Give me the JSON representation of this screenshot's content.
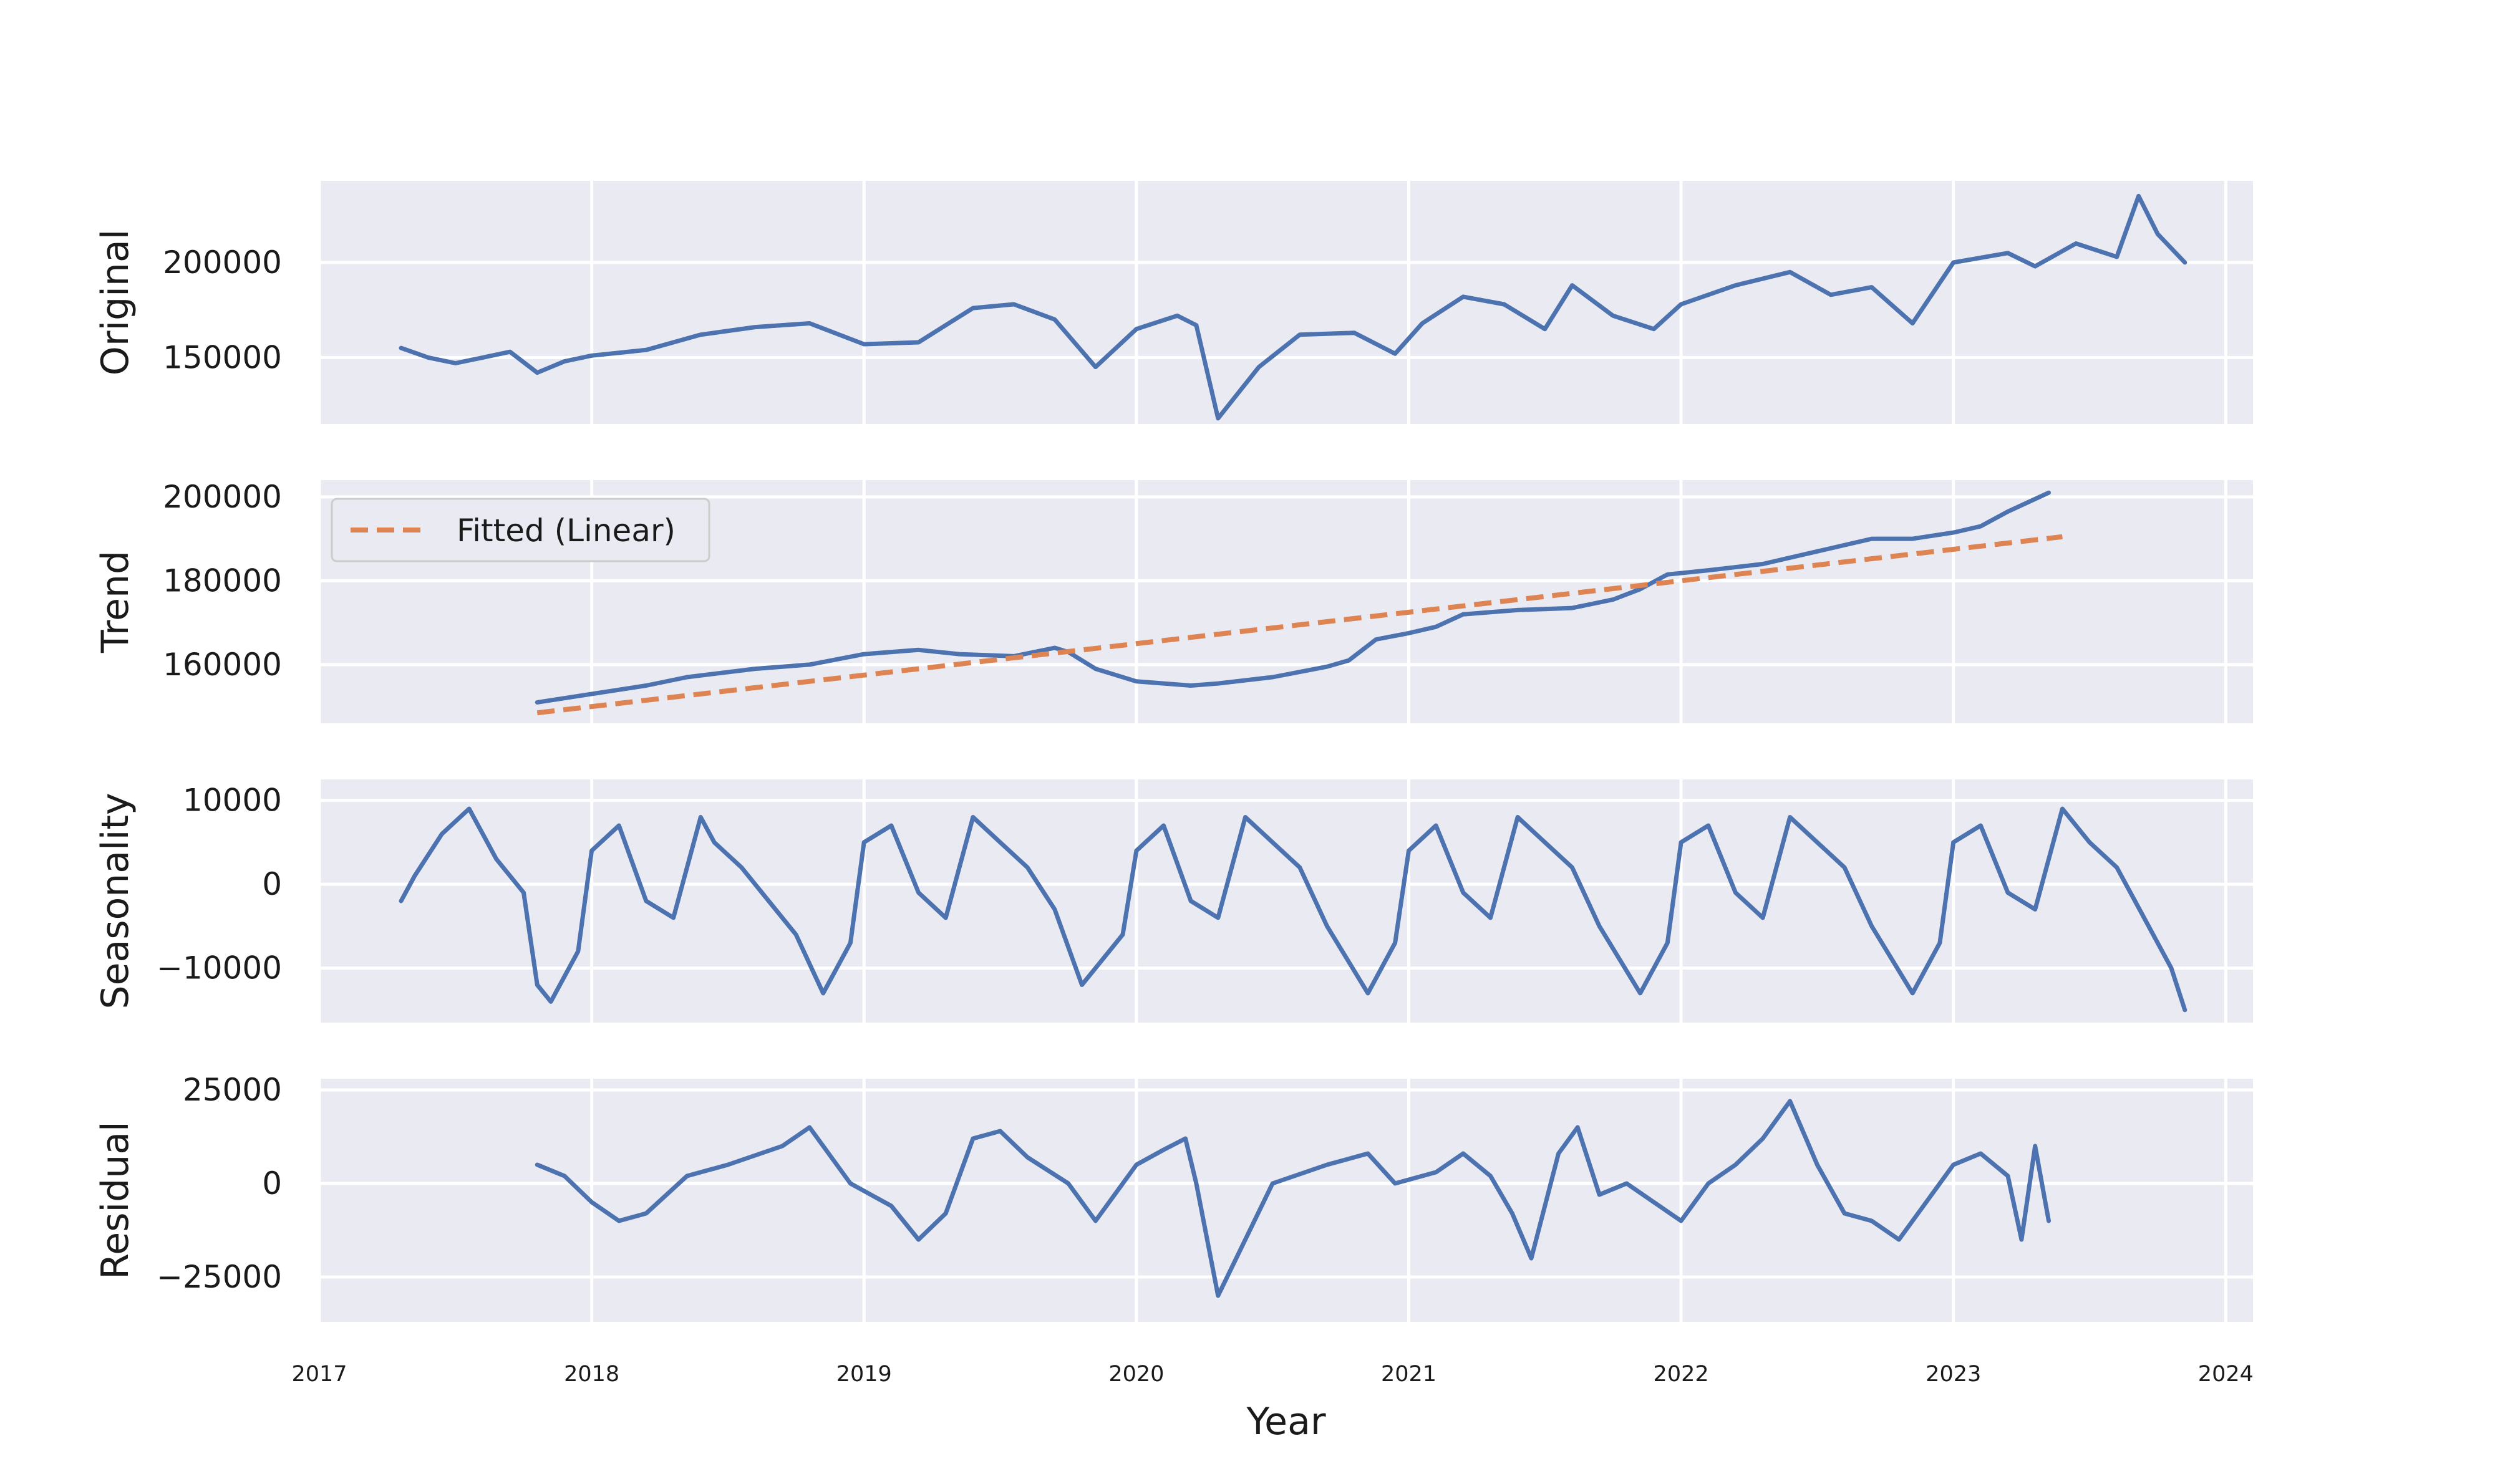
{
  "chart_data": {
    "type": "line",
    "xlabel": "Year",
    "xlim": [
      2017.0,
      2024.1
    ],
    "x_ticks": [
      "2017",
      "2018",
      "2019",
      "2020",
      "2021",
      "2022",
      "2023",
      "2024"
    ],
    "colors": {
      "observed": "#4c72b0",
      "fitted": "#dd8452"
    },
    "panels": [
      {
        "key": "original",
        "ylabel": "Original",
        "ylim": [
          115000,
          243000
        ],
        "y_ticks": [
          150000,
          200000
        ],
        "y_tick_labels": [
          "150000",
          "200000"
        ],
        "series": [
          {
            "x": [
              2017.3,
              2017.4,
              2017.5,
              2017.6,
              2017.7,
              2017.8,
              2017.9,
              2018.0,
              2018.2,
              2018.4,
              2018.6,
              2018.8,
              2019.0,
              2019.2,
              2019.4,
              2019.55,
              2019.7,
              2019.85,
              2020.0,
              2020.15,
              2020.22,
              2020.3,
              2020.45,
              2020.6,
              2020.8,
              2020.95,
              2021.05,
              2021.2,
              2021.35,
              2021.5,
              2021.6,
              2021.75,
              2021.9,
              2022.0,
              2022.2,
              2022.4,
              2022.55,
              2022.7,
              2022.85,
              2023.0,
              2023.2,
              2023.3,
              2023.45,
              2023.6,
              2023.68,
              2023.75,
              2023.85
            ],
            "values": [
              155000,
              150000,
              147000,
              150000,
              153000,
              142000,
              148000,
              151000,
              154000,
              162000,
              166000,
              168000,
              157000,
              158000,
              176000,
              178000,
              170000,
              145000,
              165000,
              172000,
              167000,
              118000,
              145000,
              162000,
              163000,
              152000,
              168000,
              182000,
              178000,
              165000,
              188000,
              172000,
              165000,
              178000,
              188000,
              195000,
              183000,
              187000,
              168000,
              200000,
              205000,
              198000,
              210000,
              203000,
              235000,
              215000,
              200000
            ]
          }
        ]
      },
      {
        "key": "trend",
        "ylabel": "Trend",
        "ylim": [
          146000,
          204000
        ],
        "y_ticks": [
          160000,
          180000,
          200000
        ],
        "y_tick_labels": [
          "160000",
          "180000",
          "200000"
        ],
        "legend": {
          "label": "Fitted (Linear)",
          "placement": "upper-left"
        },
        "series": [
          {
            "x": [
              2017.8,
              2017.9,
              2018.0,
              2018.2,
              2018.35,
              2018.6,
              2018.8,
              2019.0,
              2019.2,
              2019.35,
              2019.55,
              2019.7,
              2019.75,
              2019.85,
              2020.0,
              2020.2,
              2020.3,
              2020.5,
              2020.7,
              2020.78,
              2020.88,
              2021.0,
              2021.1,
              2021.2,
              2021.4,
              2021.6,
              2021.75,
              2021.85,
              2021.95,
              2022.1,
              2022.3,
              2022.5,
              2022.7,
              2022.85,
              2023.0,
              2023.1,
              2023.2,
              2023.35
            ],
            "values": [
              151000,
              152000,
              153000,
              155000,
              157000,
              159000,
              160000,
              162500,
              163500,
              162500,
              162000,
              164000,
              163000,
              159000,
              156000,
              155000,
              155500,
              157000,
              159500,
              161000,
              166000,
              167500,
              169000,
              172000,
              173000,
              173500,
              175500,
              178000,
              181500,
              182500,
              184000,
              187000,
              190000,
              190000,
              191500,
              193000,
              196500,
              201000
            ]
          },
          {
            "dashed": true,
            "x": [
              2017.8,
              2023.4
            ],
            "values": [
              148500,
              190500
            ]
          }
        ]
      },
      {
        "key": "seasonality",
        "ylabel": "Seasonality",
        "ylim": [
          -16500,
          12500
        ],
        "y_ticks": [
          -10000,
          0,
          10000
        ],
        "y_tick_labels": [
          "−10000",
          "0",
          "10000"
        ],
        "series": [
          {
            "x": [
              2017.3,
              2017.35,
              2017.45,
              2017.55,
              2017.65,
              2017.75,
              2017.8,
              2017.85,
              2017.95,
              2018.0,
              2018.1,
              2018.2,
              2018.3,
              2018.4,
              2018.45,
              2018.55,
              2018.65,
              2018.75,
              2018.85,
              2018.95,
              2019.0,
              2019.1,
              2019.2,
              2019.3,
              2019.4,
              2019.5,
              2019.6,
              2019.7,
              2019.8,
              2019.95,
              2020.0,
              2020.1,
              2020.2,
              2020.3,
              2020.4,
              2020.5,
              2020.6,
              2020.7,
              2020.85,
              2020.95,
              2021.0,
              2021.1,
              2021.2,
              2021.3,
              2021.4,
              2021.5,
              2021.6,
              2021.7,
              2021.85,
              2021.95,
              2022.0,
              2022.1,
              2022.2,
              2022.3,
              2022.4,
              2022.5,
              2022.6,
              2022.7,
              2022.85,
              2022.95,
              2023.0,
              2023.1,
              2023.2,
              2023.3,
              2023.4,
              2023.5,
              2023.6,
              2023.7,
              2023.8,
              2023.85
            ],
            "values": [
              -2000,
              1000,
              6000,
              9000,
              3000,
              -1000,
              -12000,
              -14000,
              -8000,
              4000,
              7000,
              -2000,
              -4000,
              8000,
              5000,
              2000,
              -2000,
              -6000,
              -13000,
              -7000,
              5000,
              7000,
              -1000,
              -4000,
              8000,
              5000,
              2000,
              -3000,
              -12000,
              -6000,
              4000,
              7000,
              -2000,
              -4000,
              8000,
              5000,
              2000,
              -5000,
              -13000,
              -7000,
              4000,
              7000,
              -1000,
              -4000,
              8000,
              5000,
              2000,
              -5000,
              -13000,
              -7000,
              5000,
              7000,
              -1000,
              -4000,
              8000,
              5000,
              2000,
              -5000,
              -13000,
              -7000,
              5000,
              7000,
              -1000,
              -3000,
              9000,
              5000,
              2000,
              -4000,
              -10000,
              -15000
            ]
          }
        ]
      },
      {
        "key": "residual",
        "ylabel": "Residual",
        "ylim": [
          -37000,
          28000
        ],
        "y_ticks": [
          -25000,
          0,
          25000
        ],
        "y_tick_labels": [
          "−25000",
          "0",
          "25000"
        ],
        "series": [
          {
            "x": [
              2017.8,
              2017.9,
              2018.0,
              2018.1,
              2018.2,
              2018.35,
              2018.5,
              2018.7,
              2018.8,
              2018.95,
              2019.1,
              2019.2,
              2019.3,
              2019.4,
              2019.5,
              2019.6,
              2019.75,
              2019.85,
              2020.0,
              2020.1,
              2020.18,
              2020.22,
              2020.3,
              2020.4,
              2020.5,
              2020.7,
              2020.85,
              2020.95,
              2021.1,
              2021.2,
              2021.3,
              2021.38,
              2021.45,
              2021.55,
              2021.62,
              2021.7,
              2021.8,
              2021.9,
              2022.0,
              2022.1,
              2022.2,
              2022.3,
              2022.4,
              2022.5,
              2022.6,
              2022.7,
              2022.8,
              2022.9,
              2023.0,
              2023.1,
              2023.2,
              2023.25,
              2023.3,
              2023.35
            ],
            "values": [
              5000,
              2000,
              -5000,
              -10000,
              -8000,
              2000,
              5000,
              10000,
              15000,
              0,
              -6000,
              -15000,
              -8000,
              12000,
              14000,
              7000,
              0,
              -10000,
              5000,
              9000,
              12000,
              0,
              -30000,
              -15000,
              0,
              5000,
              8000,
              0,
              3000,
              8000,
              2000,
              -8000,
              -20000,
              8000,
              15000,
              -3000,
              0,
              -5000,
              -10000,
              0,
              5000,
              12000,
              22000,
              5000,
              -8000,
              -10000,
              -15000,
              -5000,
              5000,
              8000,
              2000,
              -15000,
              10000,
              -10000
            ]
          }
        ]
      }
    ]
  }
}
